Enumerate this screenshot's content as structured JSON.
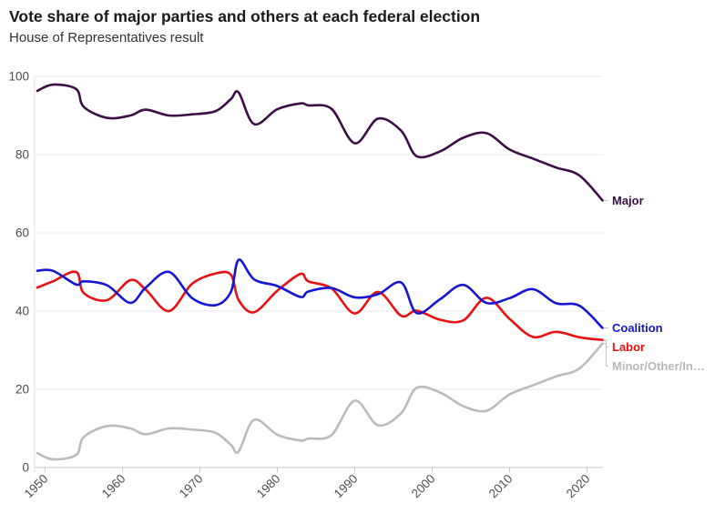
{
  "header": {
    "title": "Vote share of major parties and others at each federal election",
    "subtitle": "House of Representatives result"
  },
  "colors": {
    "major": "#3c0d47",
    "coalition": "#1515d3",
    "labor": "#e81010",
    "minor": "#bbbbbb",
    "minor_label": "#b8b8b8",
    "grid": "#eaeaea",
    "axis": "#c9c9c9",
    "axis_left": "#e2e2e2",
    "leader": "#c4c4c4",
    "tick_text": "#4e4e4e"
  },
  "chart_data": {
    "type": "line",
    "title": "Vote share of major parties and others at each federal election",
    "subtitle": "House of Representatives result",
    "xlabel": "",
    "ylabel": "",
    "xlim": [
      1949,
      2022
    ],
    "ylim": [
      0,
      100
    ],
    "grid": "horizontal",
    "legend_position": "right-direct-labels",
    "x_ticks": [
      1950,
      1960,
      1970,
      1980,
      1990,
      2000,
      2010,
      2020
    ],
    "y_ticks": [
      0,
      20,
      40,
      60,
      80,
      100
    ],
    "x": [
      1949,
      1951,
      1954,
      1955,
      1958,
      1961,
      1963,
      1966,
      1969,
      1972,
      1974,
      1975,
      1977,
      1980,
      1983,
      1984,
      1987,
      1990,
      1993,
      1996,
      1998,
      2001,
      2004,
      2007,
      2010,
      2013,
      2016,
      2019,
      2022
    ],
    "series": [
      {
        "key": "major",
        "label": "Major",
        "color_key": "major",
        "label_color_key": "major",
        "values": [
          96.3,
          97.9,
          96.8,
          92.2,
          89.4,
          90.0,
          91.5,
          90.0,
          90.3,
          91.1,
          94.2,
          95.9,
          87.8,
          91.6,
          93.1,
          92.6,
          91.7,
          82.9,
          89.2,
          86.1,
          79.6,
          80.8,
          84.3,
          85.5,
          81.3,
          79.0,
          76.7,
          74.7,
          68.3
        ]
      },
      {
        "key": "coalition",
        "label": "Coalition",
        "color_key": "coalition",
        "label_color_key": "coalition",
        "values": [
          50.3,
          50.3,
          46.8,
          47.6,
          46.6,
          42.1,
          46.0,
          50.0,
          43.3,
          41.5,
          44.9,
          53.1,
          48.1,
          46.4,
          43.6,
          45.0,
          45.9,
          43.5,
          44.3,
          47.3,
          39.5,
          43.0,
          46.7,
          42.1,
          43.3,
          45.6,
          42.0,
          41.4,
          35.7
        ]
      },
      {
        "key": "labor",
        "label": "Labor",
        "color_key": "labor",
        "label_color_key": "labor",
        "values": [
          46.0,
          47.6,
          50.0,
          44.6,
          42.8,
          47.9,
          45.5,
          40.0,
          47.0,
          49.6,
          49.3,
          42.8,
          39.7,
          45.2,
          49.5,
          47.6,
          45.8,
          39.4,
          44.9,
          38.8,
          40.1,
          37.8,
          37.6,
          43.4,
          38.0,
          33.4,
          34.7,
          33.3,
          32.6
        ]
      },
      {
        "key": "minor",
        "label": "Minor/Other/In…",
        "color_key": "minor",
        "label_color_key": "minor_label",
        "values": [
          3.7,
          2.1,
          3.2,
          7.8,
          10.6,
          10.0,
          8.5,
          10.0,
          9.7,
          8.9,
          5.8,
          4.1,
          12.2,
          8.4,
          6.9,
          7.4,
          8.3,
          17.1,
          10.8,
          13.9,
          20.4,
          19.2,
          15.7,
          14.5,
          18.7,
          21.0,
          23.3,
          25.3,
          31.7
        ]
      }
    ]
  }
}
